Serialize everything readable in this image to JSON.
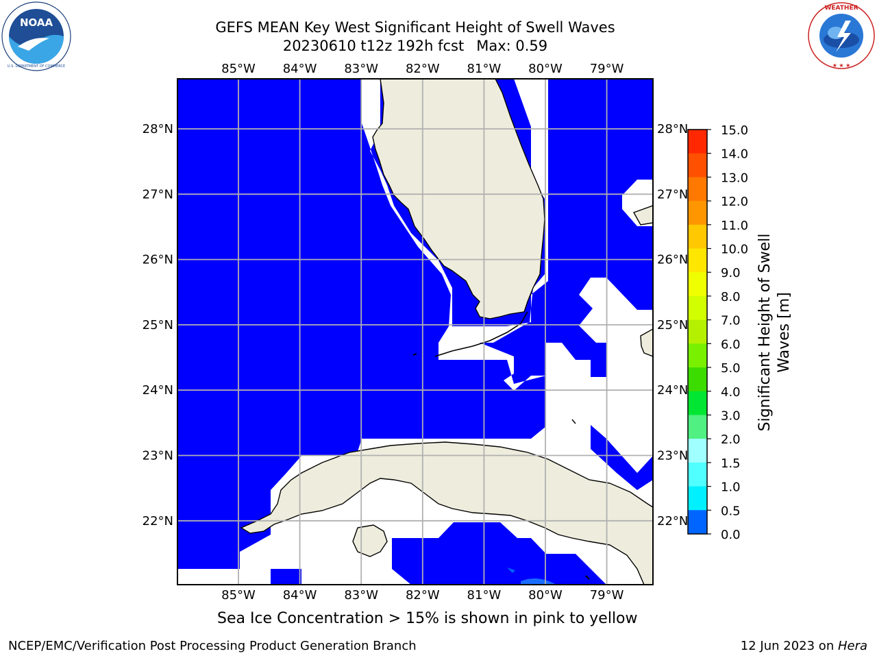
{
  "header": {
    "title_line1": "GEFS MEAN Key West Significant Height of Swell Waves",
    "title_line2": "20230610 t12z 192h fcst",
    "max_label": "Max: 0.59"
  },
  "logos": {
    "left": "noaa-logo",
    "right": "national-weather-service-logo"
  },
  "map": {
    "lon_labels": [
      "85°W",
      "84°W",
      "83°W",
      "82°W",
      "81°W",
      "80°W",
      "79°W"
    ],
    "lat_labels": [
      "28°N",
      "27°N",
      "26°N",
      "25°N",
      "24°N",
      "23°N",
      "22°N"
    ],
    "colors": {
      "ocean_low": "#0000ff",
      "ocean_next": "#0050ff",
      "land": "#eeecdc",
      "masked": "#ffffff",
      "grid": "#b0b0b0"
    }
  },
  "colorbar": {
    "label": "Significant Height of Swell Waves [m]",
    "label_line1": "Significant Height of Swell",
    "label_line2": "Waves [m]",
    "tick_labels": [
      "15.0",
      "14.0",
      "13.0",
      "12.0",
      "11.0",
      "10.0",
      "9.0",
      "8.0",
      "7.0",
      "6.0",
      "5.0",
      "4.0",
      "3.0",
      "2.0",
      "1.5",
      "1.0",
      "0.5",
      "0.0"
    ],
    "colors_top_to_bottom": [
      "#ff0000",
      "#ff2800",
      "#ff5000",
      "#ff7800",
      "#ff9600",
      "#ffc800",
      "#ffe600",
      "#f0ff00",
      "#d2ff00",
      "#b4f000",
      "#78f000",
      "#3cdc00",
      "#00e632",
      "#50f082",
      "#a0ffff",
      "#50ffff",
      "#00f0ff",
      "#0064ff",
      "#0000ff"
    ]
  },
  "note": "Sea Ice Concentration > 15% is shown in pink to yellow",
  "footer": {
    "left": "NCEP/EMC/Verification Post Processing Product Generation Branch",
    "right_date": "12 Jun 2023 on ",
    "right_host": "Hera"
  }
}
